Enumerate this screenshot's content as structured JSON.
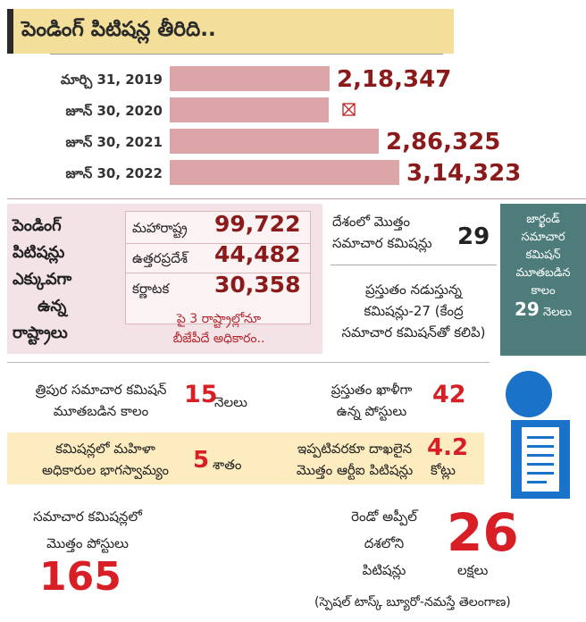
{
  "title": "పెండింగ్ పిటిషన్ల తీరిది..",
  "chart_data": {
    "type": "bar",
    "orientation": "horizontal",
    "title": "పెండింగ్ పిటిషన్ల తీరిది..",
    "categories": [
      "మార్చి 31, 2019",
      "జూన్ 30, 2020",
      "జూన్ 30, 2021",
      "జూన్ 30, 2022"
    ],
    "values": [
      218347,
      null,
      286325,
      314323
    ],
    "value_labels": [
      "2,18,347",
      "",
      "2,86,325",
      "3,14,323"
    ],
    "xlim": [
      0,
      330000
    ],
    "missing_value_marker": "⊠"
  },
  "states": {
    "heading": [
      "పెండింగ్",
      "పిటిషన్లు",
      "ఎక్కువగా",
      "ఉన్న",
      "రాష్ట్రాలు"
    ],
    "items": [
      {
        "name": "మహారాష్ట్ర",
        "value": "99,722"
      },
      {
        "name": "ఉత్తరప్రదేశ్",
        "value": "44,482"
      },
      {
        "name": "కర్ణాటక",
        "value": "30,358"
      }
    ],
    "note": [
      "పై 3 రాష్ట్రాల్లోనూ",
      "బీజేపీదే అధికారం.."
    ]
  },
  "commissions": {
    "total_label": [
      "దేశంలో మొత్తం",
      "సమాచార కమిషన్లు"
    ],
    "total_value": "29",
    "working_text": [
      "ప్రస్తుతం నడుస్తున్న",
      "కమిషన్లు-27 (కేంద్ర",
      "సమాచార కమిషన్‌తో కలిపి)"
    ]
  },
  "jharkhand": {
    "lines": [
      "జార్ఖండ్",
      "సమాచార",
      "కమిషన్",
      "మూతబడిన",
      "కాలం"
    ],
    "value": "29",
    "unit": "నెలలు"
  },
  "tripura": {
    "lines": [
      "త్రిపుర సమాచార కమిషన్",
      "మూతబడిన కాలం"
    ],
    "value": "15",
    "unit": "నెలలు"
  },
  "vacant": {
    "lines": [
      "ప్రస్తుతం ఖాళీగా",
      "ఉన్న పోస్టులు"
    ],
    "value": "42"
  },
  "women": {
    "lines": [
      "కమిషన్లలో మహిళా",
      "అధికారుల భాగస్వామ్యం"
    ],
    "value": "5",
    "unit": "శాతం"
  },
  "rti_total": {
    "lines": [
      "ఇప్పటివరకూ దాఖలైన",
      "మొత్తం ఆర్టీఐ పిటిషన్లు"
    ],
    "value": "4.2",
    "unit": "కోట్లు"
  },
  "posts": {
    "lines": [
      "సమాచార కమిషన్లలో",
      "మొత్తం పోస్టులు"
    ],
    "value": "165"
  },
  "appeals": {
    "lines": [
      "రెండో అప్పీల్",
      "దశలోని",
      "పిటిషన్లు"
    ],
    "value": "26",
    "unit": "లక్షలు"
  },
  "credit": "(స్పెషల్ టాస్క్ బ్యూరో-నమస్తే తెలంగాణ)"
}
